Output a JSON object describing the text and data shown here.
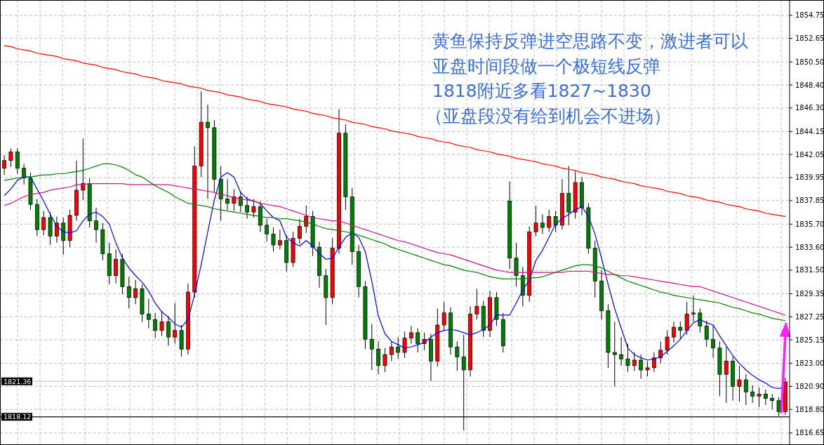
{
  "chart_data": {
    "type": "candlestick",
    "categories": [
      null,
      null,
      null,
      null,
      null,
      null,
      null,
      null,
      null,
      null,
      null,
      null,
      null,
      null,
      null,
      null,
      null,
      null,
      null,
      null,
      null,
      null,
      null,
      null,
      null,
      null,
      null,
      null,
      null,
      null,
      null,
      null,
      null,
      null,
      null,
      null,
      null,
      null,
      null,
      null,
      null,
      null,
      null,
      null,
      null,
      null,
      null,
      null,
      null,
      null,
      null,
      null,
      null,
      null,
      null,
      null,
      null,
      null,
      null,
      null,
      null,
      null,
      null,
      null,
      null,
      null,
      null,
      null,
      null,
      null,
      null,
      null,
      null,
      null,
      null,
      null,
      null,
      null,
      null,
      null,
      null,
      null,
      null,
      null,
      null,
      null,
      null,
      null,
      null,
      null,
      null,
      null,
      null,
      null,
      null,
      null,
      null,
      null,
      null,
      null,
      null,
      null,
      null,
      null,
      null,
      null,
      null,
      null,
      null,
      null,
      null,
      null,
      null,
      null,
      null,
      null,
      null,
      null,
      null,
      null
    ],
    "series": [
      {
        "ohlc": [
          [
            1840.8,
            1842.0,
            1840.2,
            1841.5
          ],
          [
            1841.5,
            1842.6,
            1840.9,
            1842.3
          ],
          [
            1842.3,
            1842.6,
            1840.3,
            1840.8
          ],
          [
            1840.8,
            1841.2,
            1839.3,
            1839.9
          ],
          [
            1839.9,
            1840.4,
            1837.0,
            1837.5
          ],
          [
            1837.5,
            1838.0,
            1834.6,
            1835.2
          ],
          [
            1835.2,
            1836.9,
            1834.7,
            1836.3
          ],
          [
            1836.3,
            1836.8,
            1833.8,
            1834.6
          ],
          [
            1834.6,
            1836.4,
            1834.0,
            1835.8
          ],
          [
            1835.8,
            1836.3,
            1832.9,
            1834.2
          ],
          [
            1834.2,
            1837.0,
            1833.6,
            1836.5
          ],
          [
            1836.5,
            1841.5,
            1836.0,
            1838.8
          ],
          [
            1838.8,
            1843.5,
            1837.9,
            1839.4
          ],
          [
            1839.4,
            1839.9,
            1835.4,
            1836.0
          ],
          [
            1836.0,
            1837.2,
            1834.0,
            1835.2
          ],
          [
            1835.2,
            1835.8,
            1832.4,
            1833.0
          ],
          [
            1833.0,
            1834.0,
            1830.2,
            1831.0
          ],
          [
            1831.0,
            1833.4,
            1830.3,
            1832.5
          ],
          [
            1832.5,
            1833.0,
            1829.3,
            1830.0
          ],
          [
            1830.0,
            1830.9,
            1828.0,
            1829.0
          ],
          [
            1829.0,
            1830.6,
            1828.4,
            1829.8
          ],
          [
            1829.8,
            1830.2,
            1826.8,
            1827.5
          ],
          [
            1827.5,
            1828.9,
            1826.2,
            1827.0
          ],
          [
            1827.0,
            1827.6,
            1825.3,
            1826.0
          ],
          [
            1826.0,
            1827.8,
            1825.5,
            1826.8
          ],
          [
            1826.8,
            1827.3,
            1824.6,
            1825.4
          ],
          [
            1825.4,
            1828.5,
            1824.8,
            1826.0
          ],
          [
            1826.0,
            1826.5,
            1823.6,
            1824.3
          ],
          [
            1824.3,
            1830.3,
            1823.8,
            1829.5
          ],
          [
            1829.5,
            1842.8,
            1829.0,
            1841.0
          ],
          [
            1841.0,
            1847.8,
            1840.0,
            1845.0
          ],
          [
            1845.0,
            1846.6,
            1838.0,
            1844.5
          ],
          [
            1844.5,
            1845.2,
            1838.6,
            1839.8
          ],
          [
            1839.8,
            1841.0,
            1836.0,
            1838.0
          ],
          [
            1838.0,
            1839.8,
            1837.0,
            1837.6
          ],
          [
            1837.6,
            1838.9,
            1836.9,
            1838.2
          ],
          [
            1838.2,
            1838.7,
            1836.8,
            1837.4
          ],
          [
            1837.4,
            1838.2,
            1836.2,
            1836.8
          ],
          [
            1836.8,
            1838.0,
            1836.3,
            1837.3
          ],
          [
            1837.3,
            1837.8,
            1835.0,
            1835.6
          ],
          [
            1835.6,
            1836.2,
            1834.1,
            1834.8
          ],
          [
            1834.8,
            1835.4,
            1833.2,
            1833.8
          ],
          [
            1833.8,
            1835.2,
            1833.4,
            1834.2
          ],
          [
            1834.2,
            1834.7,
            1831.4,
            1832.2
          ],
          [
            1832.2,
            1835.0,
            1831.8,
            1834.4
          ],
          [
            1834.4,
            1836.2,
            1833.9,
            1835.5
          ],
          [
            1835.5,
            1837.4,
            1834.9,
            1836.4
          ],
          [
            1836.4,
            1836.9,
            1832.8,
            1833.6
          ],
          [
            1833.6,
            1834.1,
            1829.9,
            1831.0
          ],
          [
            1831.0,
            1831.6,
            1826.5,
            1829.0
          ],
          [
            1829.0,
            1834.4,
            1828.4,
            1833.5
          ],
          [
            1833.5,
            1846.2,
            1833.0,
            1844.0
          ],
          [
            1844.0,
            1844.8,
            1837.0,
            1838.2
          ],
          [
            1838.2,
            1839.0,
            1832.0,
            1833.2
          ],
          [
            1833.2,
            1833.8,
            1829.0,
            1830.0
          ],
          [
            1830.0,
            1830.5,
            1824.3,
            1825.2
          ],
          [
            1825.2,
            1826.6,
            1822.4,
            1824.3
          ],
          [
            1824.3,
            1825.0,
            1822.0,
            1822.8
          ],
          [
            1822.8,
            1824.4,
            1822.2,
            1823.8
          ],
          [
            1823.8,
            1825.0,
            1823.2,
            1824.5
          ],
          [
            1824.5,
            1825.4,
            1823.4,
            1824.0
          ],
          [
            1824.0,
            1825.9,
            1823.5,
            1825.3
          ],
          [
            1825.3,
            1826.4,
            1824.8,
            1825.8
          ],
          [
            1825.8,
            1826.2,
            1824.0,
            1824.8
          ],
          [
            1824.8,
            1825.8,
            1824.2,
            1825.2
          ],
          [
            1825.2,
            1825.7,
            1821.4,
            1823.2
          ],
          [
            1823.2,
            1828.0,
            1822.7,
            1826.5
          ],
          [
            1826.5,
            1828.6,
            1826.0,
            1827.6
          ],
          [
            1827.6,
            1828.1,
            1823.8,
            1824.5
          ],
          [
            1824.5,
            1825.0,
            1822.3,
            1823.6
          ],
          [
            1823.6,
            1825.6,
            1816.9,
            1822.4
          ],
          [
            1822.4,
            1828.2,
            1821.8,
            1827.5
          ],
          [
            1827.5,
            1829.8,
            1827.0,
            1828.2
          ],
          [
            1828.2,
            1828.7,
            1825.4,
            1826.0
          ],
          [
            1826.0,
            1829.6,
            1825.4,
            1829.0
          ],
          [
            1829.0,
            1829.5,
            1826.4,
            1827.0
          ],
          [
            1827.0,
            1827.6,
            1824.0,
            1824.6
          ],
          [
            1837.8,
            1839.6,
            1831.6,
            1832.6
          ],
          [
            1832.6,
            1834.0,
            1830.0,
            1831.0
          ],
          [
            1831.0,
            1831.8,
            1828.2,
            1829.2
          ],
          [
            1829.2,
            1835.5,
            1828.6,
            1835.0
          ],
          [
            1835.0,
            1837.4,
            1834.6,
            1835.8
          ],
          [
            1835.8,
            1836.6,
            1834.8,
            1835.4
          ],
          [
            1835.4,
            1837.0,
            1835.0,
            1836.4
          ],
          [
            1836.4,
            1836.9,
            1835.0,
            1835.6
          ],
          [
            1835.6,
            1839.8,
            1835.2,
            1838.5
          ],
          [
            1838.5,
            1841.0,
            1835.6,
            1836.8
          ],
          [
            1836.8,
            1840.5,
            1836.2,
            1839.5
          ],
          [
            1839.5,
            1840.0,
            1836.5,
            1837.2
          ],
          [
            1837.2,
            1837.6,
            1833.0,
            1833.5
          ],
          [
            1833.5,
            1834.2,
            1829.0,
            1830.5
          ],
          [
            1830.5,
            1831.5,
            1827.0,
            1827.8
          ],
          [
            1827.8,
            1828.4,
            1822.6,
            1824.0
          ],
          [
            1824.0,
            1826.8,
            1820.9,
            1823.8
          ],
          [
            1823.8,
            1825.4,
            1822.8,
            1823.4
          ],
          [
            1823.4,
            1824.8,
            1822.2,
            1822.8
          ],
          [
            1822.8,
            1824.0,
            1822.3,
            1823.3
          ],
          [
            1823.3,
            1823.8,
            1821.6,
            1822.4
          ],
          [
            1822.4,
            1823.2,
            1821.8,
            1822.6
          ],
          [
            1822.6,
            1824.0,
            1822.2,
            1823.5
          ],
          [
            1823.5,
            1825.0,
            1823.0,
            1824.2
          ],
          [
            1824.2,
            1826.0,
            1823.8,
            1825.4
          ],
          [
            1825.4,
            1826.8,
            1824.9,
            1826.3
          ],
          [
            1826.3,
            1826.8,
            1825.2,
            1826.0
          ],
          [
            1826.0,
            1828.6,
            1825.6,
            1827.5
          ],
          [
            1827.5,
            1829.2,
            1826.8,
            1827.6
          ],
          [
            1827.6,
            1828.0,
            1825.8,
            1826.4
          ],
          [
            1826.4,
            1826.9,
            1824.5,
            1825.2
          ],
          [
            1825.2,
            1826.5,
            1823.5,
            1824.4
          ],
          [
            1824.4,
            1825.0,
            1820.0,
            1822.0
          ],
          [
            1822.0,
            1824.5,
            1819.4,
            1823.2
          ],
          [
            1823.2,
            1823.6,
            1819.6,
            1820.9
          ],
          [
            1820.9,
            1822.8,
            1819.5,
            1821.5
          ],
          [
            1821.5,
            1822.0,
            1819.2,
            1820.4
          ],
          [
            1820.4,
            1821.0,
            1819.4,
            1820.0
          ],
          [
            1820.0,
            1820.8,
            1819.0,
            1820.2
          ],
          [
            1820.2,
            1820.6,
            1819.2,
            1819.8
          ],
          [
            1819.8,
            1820.2,
            1818.8,
            1819.6
          ],
          [
            1819.6,
            1819.9,
            1818.2,
            1818.6
          ],
          [
            1818.6,
            1821.7,
            1818.3,
            1821.3
          ]
        ],
        "colors": [
          "#ff0000",
          "#ff0000",
          "#008000",
          "#008000",
          "#008000",
          "#008000",
          "#ff0000",
          "#008000",
          "#ff0000",
          "#008000",
          "#ff0000",
          "#ff0000",
          "#ff0000",
          "#008000",
          "#008000",
          "#008000",
          "#008000",
          "#ff0000",
          "#008000",
          "#008000",
          "#ff0000",
          "#008000",
          "#008000",
          "#008000",
          "#ff0000",
          "#008000",
          "#ff0000",
          "#008000",
          "#ff0000",
          "#ff0000",
          "#ff0000",
          "#008000",
          "#008000",
          "#008000",
          "#008000",
          "#ff0000",
          "#008000",
          "#008000",
          "#ff0000",
          "#008000",
          "#008000",
          "#008000",
          "#ff0000",
          "#008000",
          "#ff0000",
          "#ff0000",
          "#ff0000",
          "#008000",
          "#008000",
          "#008000",
          "#ff0000",
          "#ff0000",
          "#008000",
          "#008000",
          "#008000",
          "#008000",
          "#008000",
          "#008000",
          "#ff0000",
          "#ff0000",
          "#008000",
          "#ff0000",
          "#ff0000",
          "#008000",
          "#ff0000",
          "#008000",
          "#ff0000",
          "#ff0000",
          "#008000",
          "#008000",
          "#008000",
          "#ff0000",
          "#ff0000",
          "#008000",
          "#ff0000",
          "#008000",
          "#008000",
          "#008000",
          "#008000",
          "#008000",
          "#ff0000",
          "#ff0000",
          "#008000",
          "#ff0000",
          "#008000",
          "#ff0000",
          "#008000",
          "#ff0000",
          "#008000",
          "#008000",
          "#008000",
          "#008000",
          "#008000",
          "#008000",
          "#008000",
          "#008000",
          "#ff0000",
          "#008000",
          "#ff0000",
          "#ff0000",
          "#ff0000",
          "#ff0000",
          "#ff0000",
          "#008000",
          "#ff0000",
          "#ff0000",
          "#008000",
          "#008000",
          "#008000",
          "#008000",
          "#ff0000",
          "#008000",
          "#ff0000",
          "#008000",
          "#008000",
          "#ff0000",
          "#008000",
          "#008000",
          "#008000",
          "#ff0000"
        ]
      },
      {
        "type": "line",
        "color": "#0000ff",
        "values": [
          1838.3,
          1838.9,
          1839.7,
          1840.0,
          1840.0,
          1838.9,
          1837.8,
          1836.6,
          1835.5,
          1835.0,
          1834.9,
          1835.1,
          1836.0,
          1836.6,
          1836.8,
          1836.4,
          1835.7,
          1834.0,
          1832.6,
          1831.7,
          1831.0,
          1830.4,
          1829.6,
          1828.5,
          1827.7,
          1827.2,
          1826.6,
          1826.3,
          1827.0,
          1829.3,
          1832.0,
          1835.0,
          1837.9,
          1840.0,
          1840.4,
          1840.0,
          1838.6,
          1838.0,
          1837.8,
          1837.6,
          1836.9,
          1836.3,
          1836.0,
          1834.5,
          1834.0,
          1833.7,
          1834.2,
          1833.7,
          1833.0,
          1832.5,
          1832.6,
          1833.6,
          1834.5,
          1834.9,
          1834.5,
          1833.2,
          1830.5,
          1827.3,
          1825.7,
          1825.0,
          1824.7,
          1824.4,
          1824.5,
          1824.7,
          1824.9,
          1825.4,
          1825.8,
          1826.0,
          1826.1,
          1826.0,
          1825.8,
          1825.6,
          1825.8,
          1826.1,
          1826.5,
          1827.4,
          1827.4,
          1827.4,
          1828.5,
          1829.7,
          1830.6,
          1832.4,
          1833.3,
          1834.5,
          1835.7,
          1836.2,
          1836.6,
          1837.0,
          1837.3,
          1836.4,
          1834.8,
          1832.6,
          1830.2,
          1828.0,
          1826.2,
          1824.4,
          1823.8,
          1823.5,
          1823.3,
          1823.4,
          1823.6,
          1824.1,
          1824.6,
          1825.2,
          1826.0,
          1826.7,
          1827.0,
          1826.7,
          1826.5,
          1825.5,
          1824.6,
          1823.7,
          1823.0,
          1822.4,
          1821.9,
          1821.5,
          1821.2,
          1820.8,
          1820.7,
          1820.9
        ]
      },
      {
        "type": "line",
        "color": "#c71585",
        "values": [
          1837.4,
          1837.6,
          1837.9,
          1838.2,
          1838.4,
          1838.5,
          1838.6,
          1838.8,
          1838.9,
          1839.0,
          1839.1,
          1839.3,
          1839.3,
          1839.4,
          1839.4,
          1839.4,
          1839.4,
          1839.4,
          1839.4,
          1839.3,
          1839.3,
          1839.3,
          1839.3,
          1839.3,
          1839.3,
          1839.3,
          1839.2,
          1839.1,
          1839.0,
          1838.9,
          1838.8,
          1838.7,
          1838.6,
          1838.4,
          1838.3,
          1838.1,
          1838.0,
          1837.9,
          1837.8,
          1837.6,
          1837.5,
          1837.4,
          1837.3,
          1837.1,
          1836.9,
          1836.7,
          1836.5,
          1836.3,
          1836.2,
          1836.1,
          1836.0,
          1836.0,
          1835.8,
          1835.6,
          1835.4,
          1835.2,
          1835.0,
          1834.8,
          1834.6,
          1834.4,
          1834.2,
          1834.1,
          1833.9,
          1833.7,
          1833.5,
          1833.3,
          1833.1,
          1833.0,
          1832.9,
          1832.7,
          1832.5,
          1832.3,
          1832.1,
          1831.9,
          1831.7,
          1831.5,
          1831.4,
          1831.3,
          1831.3,
          1831.3,
          1831.3,
          1831.3,
          1831.3,
          1831.3,
          1831.3,
          1831.3,
          1831.4,
          1831.4,
          1831.4,
          1831.4,
          1831.3,
          1831.2,
          1831.1,
          1831.1,
          1831.0,
          1831.0,
          1830.9,
          1830.8,
          1830.7,
          1830.6,
          1830.5,
          1830.4,
          1830.3,
          1830.2,
          1830.1,
          1830.0,
          1830.0,
          1829.8,
          1829.6,
          1829.4,
          1829.2,
          1829.0,
          1828.8,
          1828.6,
          1828.4,
          1828.2,
          1828.0,
          1827.8,
          1827.6,
          1827.4
        ]
      },
      {
        "type": "line",
        "color": "#008000",
        "values": [
          1839.7,
          1839.8,
          1839.9,
          1840.0,
          1840.0,
          1840.1,
          1840.2,
          1840.2,
          1840.3,
          1840.3,
          1840.4,
          1840.5,
          1840.6,
          1840.8,
          1841.0,
          1841.2,
          1841.2,
          1841.1,
          1840.9,
          1840.6,
          1840.2,
          1840.0,
          1839.6,
          1839.2,
          1838.9,
          1838.6,
          1838.2,
          1837.9,
          1837.6,
          1837.5,
          1837.4,
          1837.3,
          1837.1,
          1837.0,
          1836.9,
          1836.8,
          1836.7,
          1836.6,
          1836.5,
          1836.4,
          1836.3,
          1836.3,
          1836.2,
          1836.2,
          1836.1,
          1836.0,
          1835.9,
          1835.7,
          1835.5,
          1835.3,
          1835.2,
          1835.1,
          1835.0,
          1834.9,
          1834.7,
          1834.5,
          1834.3,
          1834.1,
          1833.9,
          1833.6,
          1833.4,
          1833.2,
          1833.0,
          1832.8,
          1832.6,
          1832.4,
          1832.2,
          1832.0,
          1831.9,
          1831.7,
          1831.5,
          1831.4,
          1831.3,
          1831.1,
          1830.9,
          1830.8,
          1830.7,
          1830.7,
          1830.7,
          1830.7,
          1830.8,
          1830.8,
          1830.9,
          1831.1,
          1831.3,
          1831.5,
          1831.7,
          1831.9,
          1832.0,
          1832.0,
          1831.9,
          1831.7,
          1831.4,
          1831.1,
          1830.8,
          1830.5,
          1830.3,
          1830.1,
          1829.9,
          1829.7,
          1829.5,
          1829.4,
          1829.2,
          1829.1,
          1829.0,
          1828.9,
          1828.8,
          1828.7,
          1828.6,
          1828.5,
          1828.3,
          1828.1,
          1828.0,
          1827.8,
          1827.6,
          1827.5,
          1827.3,
          1827.1,
          1827.0,
          1826.9
        ]
      },
      {
        "type": "line",
        "color": "#ff0000",
        "values": [
          1852.0,
          1851.9,
          1851.7,
          1851.6,
          1851.5,
          1851.3,
          1851.2,
          1851.1,
          1851.0,
          1850.8,
          1850.7,
          1850.6,
          1850.4,
          1850.3,
          1850.2,
          1850.0,
          1849.9,
          1849.8,
          1849.6,
          1849.5,
          1849.4,
          1849.2,
          1849.1,
          1849.0,
          1848.8,
          1848.7,
          1848.6,
          1848.5,
          1848.3,
          1848.2,
          1848.1,
          1847.9,
          1847.8,
          1847.7,
          1847.5,
          1847.4,
          1847.3,
          1847.1,
          1847.0,
          1846.9,
          1846.7,
          1846.6,
          1846.5,
          1846.4,
          1846.2,
          1846.1,
          1846.0,
          1845.8,
          1845.7,
          1845.6,
          1845.4,
          1845.3,
          1845.2,
          1845.0,
          1844.9,
          1844.8,
          1844.6,
          1844.5,
          1844.4,
          1844.2,
          1844.1,
          1844.0,
          1843.9,
          1843.7,
          1843.6,
          1843.5,
          1843.3,
          1843.2,
          1843.1,
          1842.9,
          1842.8,
          1842.7,
          1842.5,
          1842.4,
          1842.3,
          1842.1,
          1842.0,
          1841.9,
          1841.7,
          1841.6,
          1841.5,
          1841.4,
          1841.2,
          1841.1,
          1841.0,
          1840.8,
          1840.7,
          1840.6,
          1840.4,
          1840.3,
          1840.2,
          1840.0,
          1839.9,
          1839.8,
          1839.6,
          1839.5,
          1839.4,
          1839.2,
          1839.1,
          1839.0,
          1838.9,
          1838.7,
          1838.6,
          1838.5,
          1838.3,
          1838.2,
          1838.1,
          1837.9,
          1837.8,
          1837.7,
          1837.5,
          1837.4,
          1837.3,
          1837.1,
          1837.0,
          1836.9,
          1836.7,
          1836.6,
          1836.5,
          1836.4
        ]
      }
    ],
    "ylim": [
      1815.55,
      1856.15
    ],
    "yticks": [
      1854.75,
      1852.65,
      {
        "value": 1850.5,
        "label": "1850.50"
      },
      {
        "value": 1848.4,
        "label": "1848.40"
      },
      {
        "value": 1846.3,
        "label": "1846.30"
      },
      1844.15,
      1842.05,
      1839.95,
      1837.85,
      {
        "value": 1835.7,
        "label": "1835.70"
      },
      {
        "value": 1833.6,
        "label": "1833.60"
      },
      {
        "value": 1831.5,
        "label": "1831.50"
      },
      1829.35,
      1827.25,
      1825.15,
      {
        "value": 1823,
        "label": "1823.00"
      },
      {
        "value": 1820.9,
        "label": "1820.90"
      },
      {
        "value": 1818.8,
        "label": "1818.80"
      },
      1816.65
    ],
    "ref_lines": [
      {
        "axis": "y",
        "value": 1821.36,
        "label": "1821.36",
        "color": "#c0c0c0"
      },
      {
        "axis": "y",
        "value": 1818.12,
        "label": "1818.12",
        "color": "#000000"
      }
    ],
    "annotations": [
      "黄鱼保持反弹进空思路不变，激进者可以",
      "亚盘时间段做一个极短线反弹",
      "1818附近多看1827~1830",
      "（亚盘段没有给到机会不进场）"
    ],
    "grid": true
  }
}
